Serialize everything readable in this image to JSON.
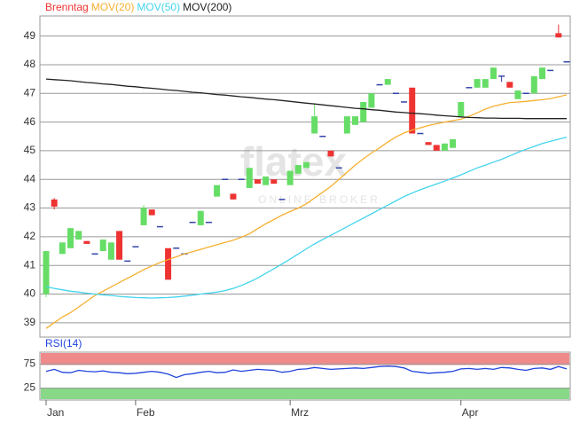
{
  "chart_data": [
    {
      "type": "candlestick",
      "name": "Brenntag",
      "up_color": "#66dd66",
      "down_color": "#ee3333",
      "flat_color": "#3344aa",
      "watermark": "flatex",
      "watermark_sub": "ONLINE BROKER",
      "categories": [
        "Jan",
        null,
        null,
        null,
        null,
        null,
        null,
        null,
        null,
        null,
        null,
        "Feb",
        null,
        null,
        null,
        null,
        null,
        null,
        null,
        null,
        null,
        null,
        null,
        null,
        null,
        null,
        null,
        null,
        null,
        null,
        "Mrz",
        null,
        null,
        null,
        null,
        null,
        null,
        null,
        null,
        null,
        null,
        null,
        null,
        null,
        null,
        null,
        null,
        null,
        null,
        null,
        null,
        "Apr",
        null,
        null,
        null,
        null,
        null,
        null,
        null,
        null,
        null,
        null,
        null,
        null,
        null
      ],
      "open": [
        40.0,
        43.3,
        41.4,
        41.6,
        41.9,
        41.85,
        41.4,
        41.5,
        41.2,
        42.2,
        41.15,
        41.65,
        42.4,
        42.95,
        42.35,
        41.6,
        41.6,
        41.4,
        42.5,
        42.4,
        42.5,
        43.4,
        44.0,
        43.5,
        44.0,
        43.7,
        44.0,
        43.8,
        44.0,
        43.3,
        43.8,
        44.2,
        44.4,
        45.6,
        45.5,
        45.0,
        44.4,
        45.6,
        45.9,
        46.0,
        46.5,
        47.3,
        47.3,
        47.0,
        46.7,
        47.2,
        45.6,
        45.3,
        45.2,
        45.0,
        45.1,
        46.2,
        47.2,
        47.2,
        47.2,
        47.5,
        47.6,
        47.4,
        46.8,
        47.0,
        47.0,
        47.5,
        47.8,
        49.1,
        48.1
      ],
      "high": [
        41.5,
        43.35,
        41.8,
        42.3,
        42.2,
        41.85,
        41.4,
        41.9,
        41.8,
        42.2,
        41.15,
        41.65,
        43.1,
        42.95,
        42.35,
        41.6,
        41.6,
        41.4,
        42.5,
        42.9,
        42.5,
        43.8,
        44.0,
        43.5,
        44.0,
        44.4,
        44.0,
        44.1,
        44.0,
        43.3,
        44.3,
        44.5,
        44.6,
        46.6,
        45.5,
        45.0,
        44.4,
        46.2,
        46.2,
        46.7,
        47.0,
        47.3,
        47.5,
        47.0,
        46.7,
        47.2,
        45.6,
        45.3,
        45.2,
        45.25,
        45.4,
        46.7,
        47.2,
        47.5,
        47.5,
        47.9,
        47.6,
        47.4,
        47.1,
        47.0,
        47.6,
        47.9,
        47.8,
        49.4,
        48.1
      ],
      "low": [
        39.9,
        42.95,
        41.4,
        41.6,
        41.9,
        41.75,
        41.4,
        41.5,
        41.2,
        41.2,
        41.15,
        41.65,
        42.4,
        42.75,
        42.35,
        40.5,
        41.6,
        41.4,
        42.5,
        42.4,
        42.5,
        43.4,
        44.0,
        43.3,
        44.0,
        43.7,
        43.85,
        43.8,
        43.85,
        43.3,
        43.8,
        44.2,
        44.4,
        45.6,
        45.5,
        44.8,
        44.4,
        45.6,
        45.9,
        46.0,
        46.5,
        47.3,
        47.3,
        47.0,
        46.7,
        45.6,
        45.6,
        45.2,
        45.0,
        45.0,
        45.1,
        46.2,
        47.2,
        47.2,
        47.2,
        47.5,
        47.4,
        47.2,
        46.8,
        47.0,
        47.0,
        47.5,
        47.8,
        48.95,
        48.1
      ],
      "close": [
        41.5,
        43.05,
        41.8,
        42.3,
        42.2,
        41.75,
        41.4,
        41.9,
        41.8,
        41.2,
        41.15,
        41.65,
        43.0,
        42.75,
        42.35,
        40.5,
        41.6,
        41.4,
        42.5,
        42.9,
        42.5,
        43.8,
        44.0,
        43.3,
        44.0,
        44.4,
        43.85,
        44.1,
        43.85,
        43.3,
        44.3,
        44.5,
        44.6,
        46.2,
        45.5,
        44.8,
        44.4,
        46.2,
        46.2,
        46.7,
        47.0,
        47.3,
        47.5,
        47.0,
        46.7,
        45.6,
        45.6,
        45.2,
        45.0,
        45.25,
        45.4,
        46.7,
        47.2,
        47.5,
        47.5,
        47.9,
        47.6,
        47.2,
        47.1,
        47.0,
        47.6,
        47.9,
        47.8,
        48.95,
        48.1
      ],
      "series": [
        {
          "name": "MOV(20)",
          "color": "#f5b030",
          "values": [
            38.8,
            39.0,
            39.2,
            39.35,
            39.55,
            39.75,
            39.95,
            40.1,
            40.25,
            40.4,
            40.55,
            40.7,
            40.85,
            40.98,
            41.1,
            41.2,
            41.3,
            41.4,
            41.48,
            41.56,
            41.64,
            41.72,
            41.8,
            41.88,
            41.98,
            42.1,
            42.28,
            42.45,
            42.6,
            42.75,
            42.88,
            43.0,
            43.15,
            43.35,
            43.55,
            43.75,
            44.0,
            44.25,
            44.5,
            44.72,
            44.92,
            45.1,
            45.3,
            45.48,
            45.62,
            45.72,
            45.8,
            45.88,
            45.94,
            46.0,
            46.05,
            46.1,
            46.2,
            46.32,
            46.45,
            46.55,
            46.62,
            46.68,
            46.7,
            46.72,
            46.75,
            46.78,
            46.82,
            46.88,
            46.95
          ]
        },
        {
          "name": "MOV(50)",
          "color": "#44d4ee",
          "values": [
            40.25,
            40.2,
            40.15,
            40.1,
            40.07,
            40.03,
            40.0,
            39.97,
            39.95,
            39.92,
            39.9,
            39.88,
            39.87,
            39.86,
            39.87,
            39.88,
            39.9,
            39.93,
            39.96,
            40.0,
            40.03,
            40.07,
            40.12,
            40.2,
            40.3,
            40.42,
            40.56,
            40.72,
            40.88,
            41.05,
            41.22,
            41.4,
            41.58,
            41.75,
            41.9,
            42.05,
            42.2,
            42.35,
            42.5,
            42.65,
            42.8,
            42.95,
            43.1,
            43.25,
            43.4,
            43.52,
            43.64,
            43.74,
            43.84,
            43.94,
            44.05,
            44.16,
            44.28,
            44.4,
            44.5,
            44.6,
            44.7,
            44.82,
            44.94,
            45.05,
            45.15,
            45.25,
            45.33,
            45.4,
            45.47
          ]
        },
        {
          "name": "MOV(200)",
          "color": "#222222",
          "values": [
            47.5,
            47.48,
            47.46,
            47.44,
            47.41,
            47.38,
            47.36,
            47.33,
            47.31,
            47.28,
            47.25,
            47.23,
            47.2,
            47.18,
            47.15,
            47.12,
            47.1,
            47.07,
            47.04,
            47.02,
            46.99,
            46.96,
            46.94,
            46.91,
            46.88,
            46.86,
            46.83,
            46.8,
            46.78,
            46.75,
            46.72,
            46.69,
            46.66,
            46.63,
            46.6,
            46.57,
            46.54,
            46.51,
            46.48,
            46.46,
            46.43,
            46.41,
            46.38,
            46.35,
            46.33,
            46.31,
            46.29,
            46.27,
            46.24,
            46.22,
            46.2,
            46.18,
            46.16,
            46.15,
            46.14,
            46.14,
            46.13,
            46.13,
            46.13,
            46.12,
            46.12,
            46.12,
            46.12,
            46.12,
            46.12
          ]
        }
      ],
      "ylim": [
        38.5,
        49.7
      ],
      "yticks": [
        39,
        40,
        41,
        42,
        43,
        44,
        45,
        46,
        47,
        48,
        49
      ],
      "grid": true
    },
    {
      "type": "line",
      "series": [
        {
          "name": "RSI(14)",
          "color": "#2244dd",
          "values": [
            60,
            64,
            58,
            57,
            62,
            60,
            59,
            61,
            58,
            57,
            55,
            56,
            58,
            60,
            58,
            54,
            47,
            53,
            55,
            58,
            60,
            57,
            58,
            63,
            60,
            62,
            64,
            63,
            62,
            58,
            60,
            64,
            65,
            68,
            66,
            64,
            65,
            66,
            67,
            66,
            68,
            70,
            71,
            70,
            67,
            60,
            58,
            56,
            57,
            58,
            60,
            65,
            66,
            64,
            66,
            64,
            68,
            67,
            64,
            62,
            66,
            67,
            64,
            70,
            65
          ]
        }
      ],
      "upper_zone_color": "#f08a8a",
      "lower_zone_color": "#88d888",
      "ylim": [
        0,
        100
      ],
      "yticks": [
        25,
        75
      ],
      "grid": true
    }
  ]
}
